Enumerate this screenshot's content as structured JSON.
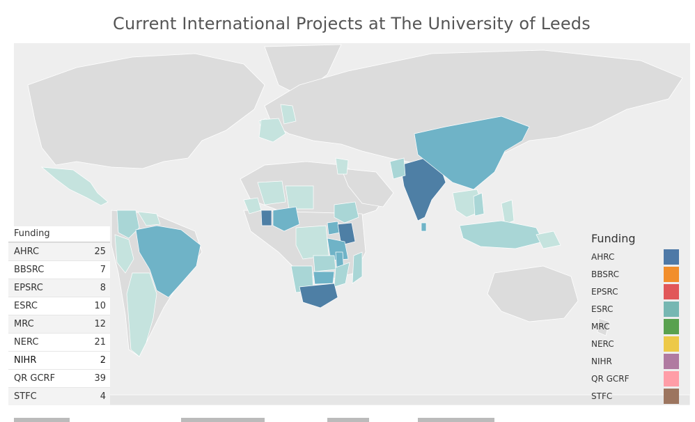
{
  "header": {
    "title": "Current International Projects at The University of Leeds"
  },
  "table": {
    "header": "Funding",
    "rows": [
      {
        "name": "AHRC",
        "value": "25"
      },
      {
        "name": "BBSRC",
        "value": "7"
      },
      {
        "name": "EPSRC",
        "value": "8"
      },
      {
        "name": "ESRC",
        "value": "10"
      },
      {
        "name": "MRC",
        "value": "12"
      },
      {
        "name": "NERC",
        "value": "21"
      },
      {
        "name": "NIHR",
        "value": "2"
      },
      {
        "name": "QR GCRF",
        "value": "39"
      },
      {
        "name": "STFC",
        "value": "4"
      }
    ]
  },
  "legend": {
    "title": "Funding",
    "items": [
      {
        "name": "AHRC",
        "color": "#4e79a7"
      },
      {
        "name": "BBSRC",
        "color": "#f28e2b"
      },
      {
        "name": "EPSRC",
        "color": "#e15759"
      },
      {
        "name": "ESRC",
        "color": "#76b7b2"
      },
      {
        "name": "MRC",
        "color": "#59a14f"
      },
      {
        "name": "NERC",
        "color": "#edc948"
      },
      {
        "name": "NIHR",
        "color": "#b07aa1"
      },
      {
        "name": "QR GCRF",
        "color": "#ff9da7"
      },
      {
        "name": "STFC",
        "color": "#9c755f"
      }
    ]
  },
  "map": {
    "colors": {
      "land": "#dddddd",
      "ocean": "#eeeeee",
      "light": "#c5e3de",
      "mid": "#a9d6d6",
      "teal": "#6fb3c7",
      "dark": "#4e7fa5"
    }
  }
}
